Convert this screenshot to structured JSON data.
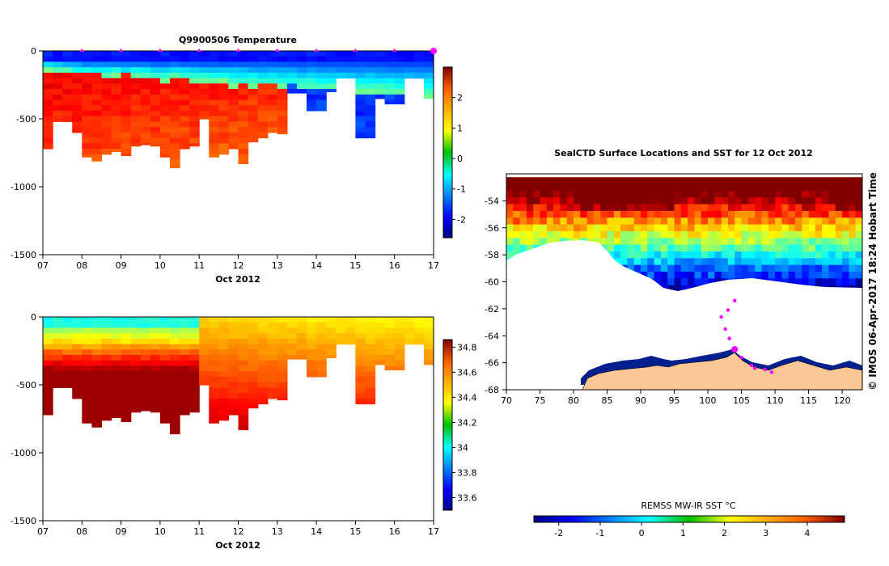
{
  "chart_data": [
    {
      "type": "heatmap",
      "title": "Q9900506  Temperature",
      "xlabel": "Oct 2012",
      "ylabel": "",
      "x_ticks": [
        "07",
        "08",
        "09",
        "10",
        "11",
        "12",
        "13",
        "14",
        "15",
        "16",
        "17"
      ],
      "xlim": [
        7,
        17
      ],
      "y_ticks": [
        "0",
        "-500",
        "-1000",
        "-1500"
      ],
      "y_tick_values": [
        0,
        -500,
        -1000,
        -1500
      ],
      "ylim": [
        -1500,
        0
      ],
      "colorbar": {
        "ticks": [
          "2",
          "1",
          "0",
          "-1",
          "-2"
        ],
        "tick_values": [
          2,
          1,
          0,
          -1,
          -2
        ],
        "range": [
          -2.6,
          3.0
        ]
      },
      "profile_markers": [
        8.0,
        9.0,
        10.0,
        11.0,
        12.0,
        13.0,
        14.0,
        15.0,
        16.0,
        17.0
      ],
      "profiles": [
        {
          "day": 7.0,
          "depth": 720
        },
        {
          "day": 7.25,
          "depth": 520
        },
        {
          "day": 7.5,
          "depth": 520
        },
        {
          "day": 7.75,
          "depth": 600
        },
        {
          "day": 8.0,
          "depth": 780
        },
        {
          "day": 8.25,
          "depth": 810
        },
        {
          "day": 8.5,
          "depth": 760
        },
        {
          "day": 8.75,
          "depth": 740
        },
        {
          "day": 9.0,
          "depth": 770
        },
        {
          "day": 9.25,
          "depth": 700
        },
        {
          "day": 9.5,
          "depth": 690
        },
        {
          "day": 9.75,
          "depth": 700
        },
        {
          "day": 10.0,
          "depth": 780
        },
        {
          "day": 10.25,
          "depth": 860
        },
        {
          "day": 10.5,
          "depth": 720
        },
        {
          "day": 10.75,
          "depth": 700
        },
        {
          "day": 11.0,
          "depth": 500
        },
        {
          "day": 11.25,
          "depth": 780
        },
        {
          "day": 11.5,
          "depth": 760
        },
        {
          "day": 11.75,
          "depth": 720
        },
        {
          "day": 12.0,
          "depth": 830
        },
        {
          "day": 12.25,
          "depth": 670
        },
        {
          "day": 12.5,
          "depth": 640
        },
        {
          "day": 12.75,
          "depth": 600
        },
        {
          "day": 13.0,
          "depth": 610
        },
        {
          "day": 13.25,
          "depth": 310
        },
        {
          "day": 13.5,
          "depth": 310
        },
        {
          "day": 13.75,
          "depth": 440
        },
        {
          "day": 14.0,
          "depth": 440
        },
        {
          "day": 14.25,
          "depth": 300
        },
        {
          "day": 14.5,
          "depth": 200
        },
        {
          "day": 14.75,
          "depth": 200
        },
        {
          "day": 15.0,
          "depth": 640
        },
        {
          "day": 15.25,
          "depth": 640
        },
        {
          "day": 15.5,
          "depth": 350
        },
        {
          "day": 15.75,
          "depth": 390
        },
        {
          "day": 16.0,
          "depth": 390
        },
        {
          "day": 16.25,
          "depth": 200
        },
        {
          "day": 16.5,
          "depth": 200
        },
        {
          "day": 16.75,
          "depth": 350
        }
      ]
    },
    {
      "type": "heatmap",
      "title": "",
      "xlabel": "Oct 2012",
      "ylabel": "",
      "x_ticks": [
        "07",
        "08",
        "09",
        "10",
        "11",
        "12",
        "13",
        "14",
        "15",
        "16",
        "17"
      ],
      "xlim": [
        7,
        17
      ],
      "y_ticks": [
        "0",
        "-500",
        "-1000",
        "-1500"
      ],
      "y_tick_values": [
        0,
        -500,
        -1000,
        -1500
      ],
      "ylim": [
        -1500,
        0
      ],
      "colorbar": {
        "ticks": [
          "34.8",
          "34.6",
          "34.4",
          "34.2",
          "34",
          "33.8",
          "33.6"
        ],
        "tick_values": [
          34.8,
          34.6,
          34.4,
          34.2,
          34.0,
          33.8,
          33.6
        ],
        "range": [
          33.5,
          34.86
        ]
      }
    },
    {
      "type": "heatmap",
      "title": "SealCTD Surface Locations and SST for 12 Oct 2012",
      "xlabel": "",
      "ylabel": "",
      "x_ticks": [
        "70",
        "75",
        "80",
        "85",
        "90",
        "95",
        "100",
        "105",
        "110",
        "115",
        "120"
      ],
      "x_tick_values": [
        70,
        75,
        80,
        85,
        90,
        95,
        100,
        105,
        110,
        115,
        120
      ],
      "xlim": [
        70,
        123
      ],
      "y_ticks": [
        "-54",
        "-56",
        "-58",
        "-60",
        "-62",
        "-64",
        "-66",
        "-68"
      ],
      "y_tick_values": [
        -54,
        -56,
        -58,
        -60,
        -62,
        -64,
        -66,
        -68
      ],
      "ylim": [
        -68,
        -52
      ],
      "colorbar": {
        "label": "REMSS MW-IR SST °C",
        "ticks": [
          "-2",
          "-1",
          "0",
          "1",
          "2",
          "3",
          "4"
        ],
        "tick_values": [
          -2,
          -1,
          0,
          1,
          2,
          3,
          4
        ],
        "range": [
          -2.6,
          4.9
        ]
      },
      "seal_track": [
        {
          "lon": 104.0,
          "lat": -65.0
        },
        {
          "lon": 103.2,
          "lat": -64.2
        },
        {
          "lon": 102.6,
          "lat": -63.5
        },
        {
          "lon": 102.0,
          "lat": -62.6
        },
        {
          "lon": 103.0,
          "lat": -62.1
        },
        {
          "lon": 104.0,
          "lat": -61.4
        },
        {
          "lon": 105.0,
          "lat": -65.6
        },
        {
          "lon": 106.5,
          "lat": -66.2
        },
        {
          "lon": 107.0,
          "lat": -66.4
        },
        {
          "lon": 108.5,
          "lat": -66.5
        },
        {
          "lon": 109.5,
          "lat": -66.7
        }
      ],
      "current_location": {
        "lon": 104.0,
        "lat": -65.0
      },
      "credit": "© IMOS 06-Apr-2017 18:24 Hobart Time"
    }
  ]
}
